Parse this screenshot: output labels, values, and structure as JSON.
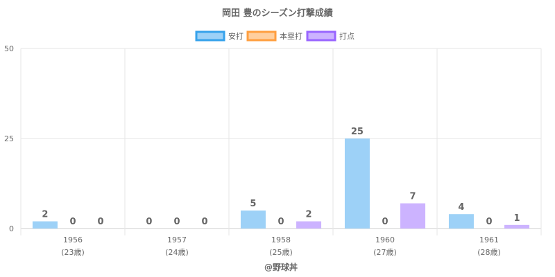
{
  "chart_data": {
    "type": "bar",
    "title": "岡田 豊のシーズン打撃成績",
    "categories": [
      "1956",
      "1957",
      "1958",
      "1960",
      "1961"
    ],
    "category_sublabels": [
      "(23歳)",
      "(24歳)",
      "(25歳)",
      "(27歳)",
      "(28歳)"
    ],
    "series": [
      {
        "name": "安打",
        "values": [
          2,
          0,
          5,
          25,
          4
        ],
        "fill": "#9dd1f7",
        "stroke": "#36a2eb"
      },
      {
        "name": "本塁打",
        "values": [
          0,
          0,
          0,
          0,
          0
        ],
        "fill": "#ffcf9f",
        "stroke": "#ff9f40"
      },
      {
        "name": "打点",
        "values": [
          0,
          0,
          2,
          7,
          1
        ],
        "fill": "#ccb3ff",
        "stroke": "#9966ff"
      }
    ],
    "y_ticks": [
      0,
      25,
      50
    ],
    "ylim": [
      0,
      50
    ],
    "grid": true,
    "legend_position": "top-center",
    "credit": "@野球丼"
  }
}
